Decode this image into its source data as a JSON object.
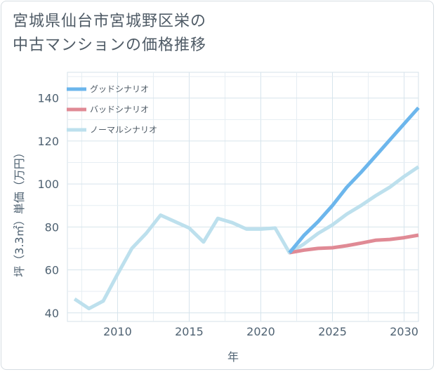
{
  "header": {
    "title_line1": "宮城県仙台市宮城野区栄の",
    "title_line2": "中古マンションの価格推移"
  },
  "chart_data": {
    "type": "line",
    "title": "宮城県仙台市宮城野区栄の中古マンションの価格推移",
    "xlabel": "年",
    "ylabel": "坪（3.3㎡）単価（万円）",
    "xlim": [
      2006.5,
      2031
    ],
    "ylim": [
      36,
      152
    ],
    "x_ticks": [
      2010,
      2015,
      2020,
      2025,
      2030
    ],
    "y_ticks": [
      40,
      60,
      80,
      100,
      120,
      140
    ],
    "grid": true,
    "legend_position": "top-left",
    "series": [
      {
        "name": "グッドシナリオ",
        "color": "#6cb6ec",
        "x": [
          2022,
          2023,
          2024,
          2025,
          2026,
          2027,
          2028,
          2029,
          2030,
          2031
        ],
        "y": [
          68,
          76,
          82.5,
          90,
          98.5,
          105.5,
          113,
          120.5,
          128,
          135.5
        ]
      },
      {
        "name": "バッドシナリオ",
        "color": "#e08a95",
        "x": [
          2022,
          2023,
          2024,
          2025,
          2026,
          2027,
          2028,
          2029,
          2030,
          2031
        ],
        "y": [
          68,
          69.2,
          70,
          70.3,
          71.3,
          72.5,
          73.8,
          74.2,
          75,
          76.2
        ]
      },
      {
        "name": "ノーマルシナリオ",
        "color": "#bde0ed",
        "x": [
          2007,
          2008,
          2009,
          2010,
          2011,
          2012,
          2013,
          2014,
          2015,
          2016,
          2017,
          2018,
          2019,
          2020,
          2021,
          2022,
          2023,
          2024,
          2025,
          2026,
          2027,
          2028,
          2029,
          2030,
          2031
        ],
        "y": [
          46.5,
          42,
          45.5,
          58,
          70,
          77,
          85.5,
          82.5,
          79.5,
          73,
          84,
          82,
          79,
          79,
          79.5,
          68,
          72,
          77,
          81,
          86,
          90,
          94.5,
          98.5,
          103.5,
          108
        ]
      }
    ]
  }
}
